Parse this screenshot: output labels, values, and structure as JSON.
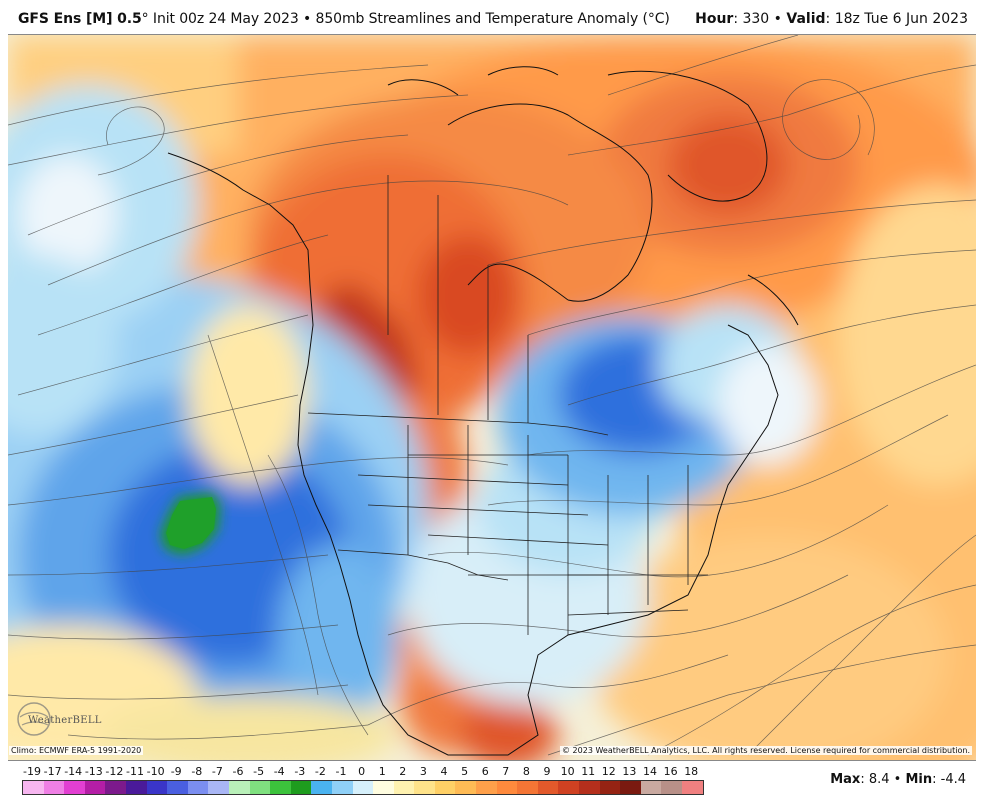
{
  "header": {
    "model": "GFS Ens [M] 0.5",
    "degree": "°",
    "run": "Init 00z 24 May 2023",
    "sep": "•",
    "product": "850mb Streamlines and Temperature Anomaly (°C)",
    "hour_label": "Hour",
    "hour_value": ": 330",
    "valid_label": "Valid",
    "valid_value": ": 18z Tue 6 Jun 2023"
  },
  "footer": {
    "climo": "Climo: ECMWF ERA-5 1991-2020",
    "copyright": "© 2023 WeatherBELL Analytics, LLC. All rights reserved. License required for commercial distribution.",
    "logo_text": "WeatherBELL"
  },
  "stats": {
    "max_label": "Max",
    "max_value": ": 8.4",
    "min_label": "Min",
    "min_value": ": -4.4"
  },
  "legend": {
    "labels": [
      "-19",
      "-17",
      "-14",
      "-13",
      "-12",
      "-11",
      "-10",
      "-9",
      "-8",
      "-7",
      "-6",
      "-5",
      "-4",
      "-3",
      "-2",
      "-1",
      "0",
      "1",
      "2",
      "3",
      "4",
      "5",
      "6",
      "7",
      "8",
      "9",
      "10",
      "11",
      "12",
      "13",
      "14",
      "16",
      "18"
    ],
    "colors": [
      "#f7b6f0",
      "#ef7fe5",
      "#e23fd2",
      "#b41ea6",
      "#7c1a8c",
      "#4a1a9a",
      "#3a35c8",
      "#4a5fe0",
      "#7b8ef0",
      "#a9b6f5",
      "#b9f0b9",
      "#7fe07f",
      "#3cc23c",
      "#1e9c1e",
      "#4ab3f0",
      "#8fd0f7",
      "#d6f0fb",
      "#fffde0",
      "#fff2b0",
      "#ffe38a",
      "#ffd066",
      "#ffbb55",
      "#ffa04a",
      "#ff8a3d",
      "#f47535",
      "#e2592b",
      "#cf4122",
      "#b42f1c",
      "#952313",
      "#7a1a10",
      "#c9a9a0",
      "#b89088",
      "#f08080"
    ]
  },
  "map": {
    "anomaly_colors": {
      "strong_warm": "#c0361a",
      "warm": "#f07a40",
      "mild_warm": "#ffb060",
      "slight_warm": "#ffe9a8",
      "neutral": "#eef6fb",
      "slight_cool": "#b8e2f6",
      "cool": "#6fb6ef",
      "strong_cool": "#2f6fdd",
      "extreme_cool": "#1a9a2a"
    }
  }
}
